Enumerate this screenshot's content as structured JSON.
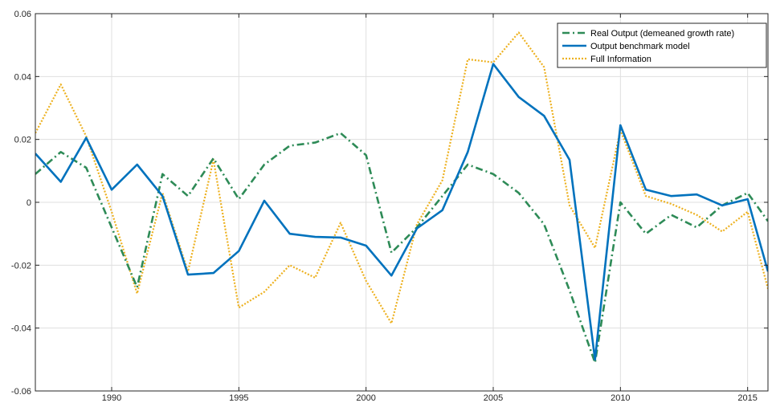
{
  "chart_data": {
    "type": "line",
    "title": "",
    "xlabel": "",
    "ylabel": "",
    "xlim": [
      1987,
      2015.8
    ],
    "ylim": [
      -0.06,
      0.06
    ],
    "xticks": [
      1990,
      1995,
      2000,
      2005,
      2010,
      2015
    ],
    "xtick_labels": [
      "1990",
      "1995",
      "2000",
      "2005",
      "2010",
      "2015"
    ],
    "yticks": [
      -0.06,
      -0.04,
      -0.02,
      0,
      0.02,
      0.04,
      0.06
    ],
    "ytick_labels": [
      "-0.06",
      "-0.04",
      "-0.02",
      "0",
      "0.02",
      "0.04",
      "0.06"
    ],
    "grid": true,
    "legend_position": "top-right",
    "x": [
      1987,
      1988,
      1989,
      1990,
      1991,
      1992,
      1993,
      1994,
      1995,
      1996,
      1997,
      1998,
      1999,
      2000,
      2001,
      2002,
      2003,
      2004,
      2005,
      2006,
      2007,
      2008,
      2009,
      2010,
      2011,
      2012,
      2013,
      2014,
      2015,
      2015.8
    ],
    "series": [
      {
        "name": "Real Output (demeaned growth rate)",
        "color": "#2e8b57",
        "style": "dashdot",
        "values": [
          0.009,
          0.016,
          0.011,
          -0.008,
          -0.027,
          0.009,
          0.002,
          0.014,
          0.001,
          0.012,
          0.018,
          0.019,
          0.022,
          0.015,
          -0.016,
          -0.008,
          0.002,
          0.012,
          0.009,
          0.003,
          -0.007,
          -0.028,
          -0.051,
          0.0,
          -0.01,
          -0.004,
          -0.008,
          -0.001,
          0.003,
          -0.006
        ]
      },
      {
        "name": "Output benchmark model",
        "color": "#0072bd",
        "style": "solid",
        "values": [
          0.0155,
          0.0065,
          0.0205,
          0.004,
          0.012,
          0.002,
          -0.023,
          -0.0225,
          -0.0155,
          0.0005,
          -0.01,
          -0.011,
          -0.0112,
          -0.0138,
          -0.0233,
          -0.0083,
          -0.0025,
          0.016,
          0.044,
          0.0335,
          0.0275,
          0.0135,
          -0.05,
          0.0245,
          0.004,
          0.002,
          0.0025,
          -0.001,
          0.001,
          -0.022
        ]
      },
      {
        "name": "Full Information",
        "color": "#edb120",
        "style": "dotted",
        "values": [
          0.022,
          0.0375,
          0.021,
          -0.003,
          -0.029,
          0.003,
          -0.022,
          0.0135,
          -0.0335,
          -0.0285,
          -0.02,
          -0.024,
          -0.0065,
          -0.025,
          -0.0385,
          -0.007,
          0.007,
          0.0455,
          0.0445,
          0.054,
          0.043,
          -0.001,
          -0.0145,
          0.023,
          0.002,
          -0.0005,
          -0.004,
          -0.0093,
          -0.003,
          -0.0275
        ]
      }
    ]
  }
}
